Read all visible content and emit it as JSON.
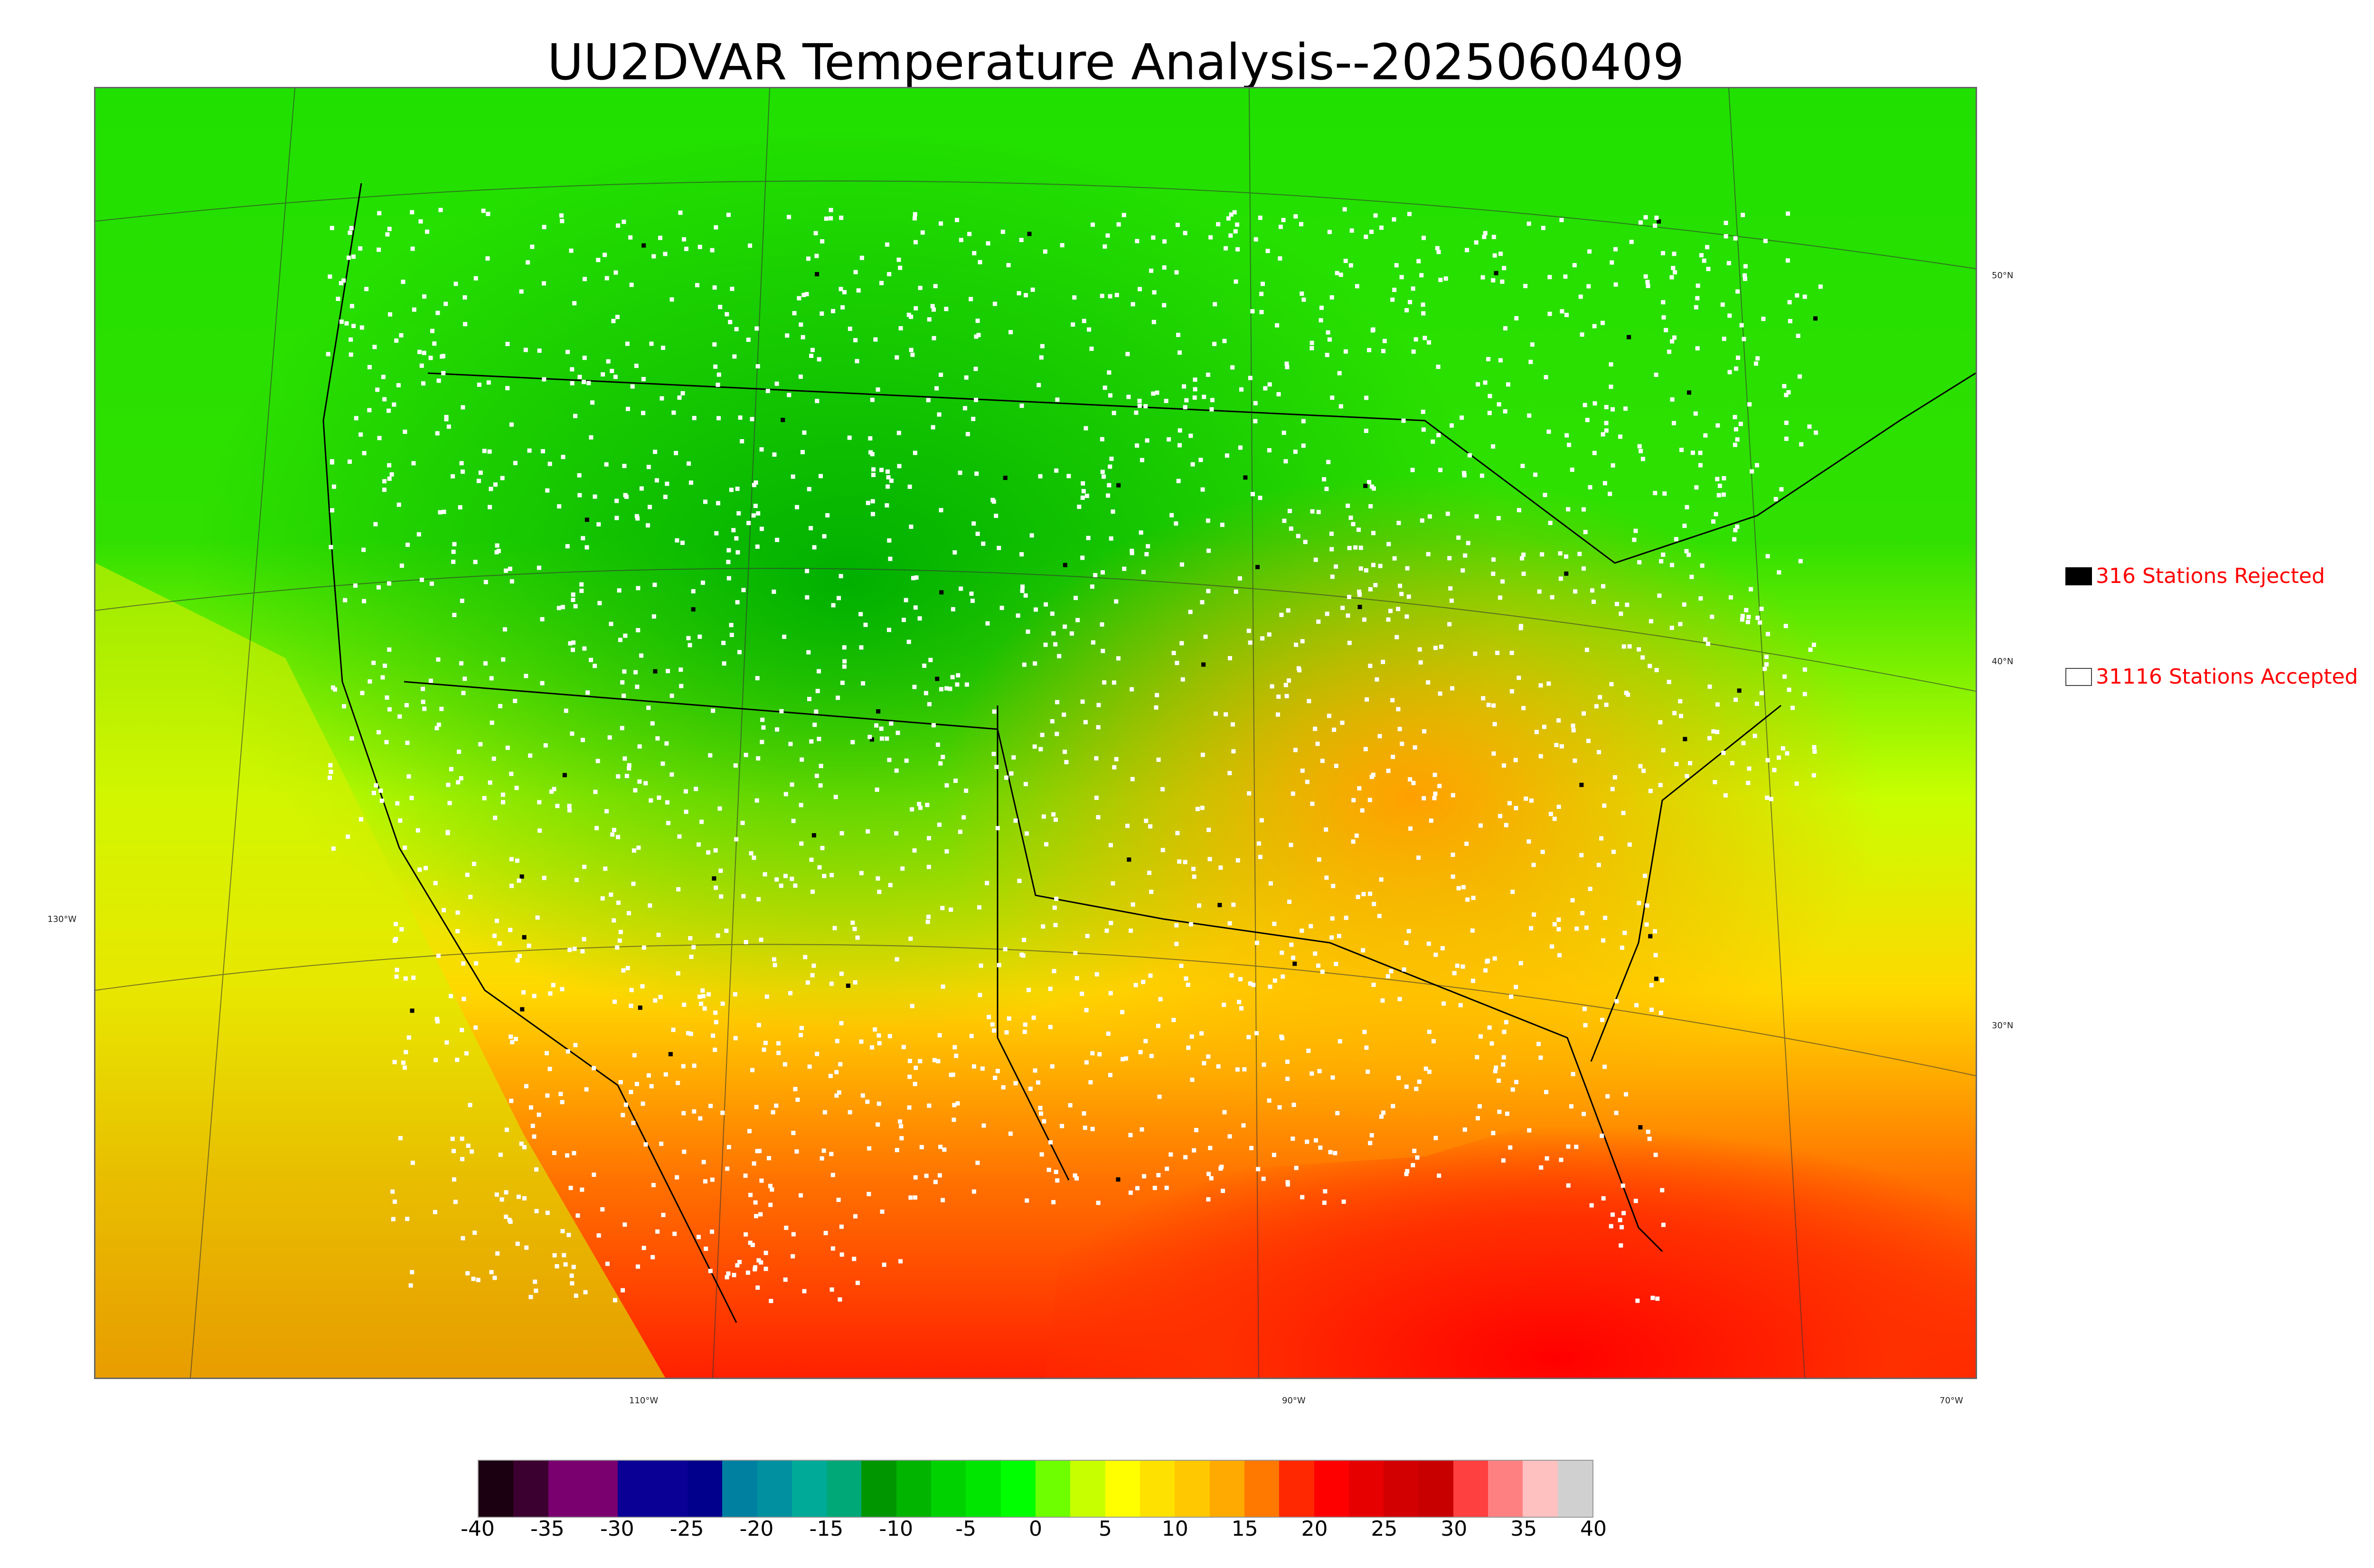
{
  "title": "UU2DVAR Temperature Analysis--2025060409",
  "map": {
    "lat_labels": [
      "50°N",
      "40°N",
      "30°N"
    ],
    "lon_labels": [
      "130°W",
      "110°W",
      "90°W",
      "70°W"
    ],
    "colors": {
      "ocean_east": "#ff2a00",
      "cold": "#00c800",
      "mild": "#b6ff00",
      "warm": "#ffb400",
      "hot": "#ff0000",
      "border": "#000000"
    }
  },
  "legend": {
    "rejected": {
      "label": "316 Stations Rejected",
      "swatch_color": "#000000"
    },
    "accepted": {
      "label": "31116 Stations Accepted",
      "swatch_color": "#ffffff"
    }
  },
  "colorbar": {
    "ticks": [
      "-40",
      "-35",
      "-30",
      "-25",
      "-20",
      "-15",
      "-10",
      "-5",
      "0",
      "5",
      "10",
      "15",
      "20",
      "25",
      "30",
      "35",
      "40"
    ],
    "colors": [
      "#1a0010",
      "#3c0030",
      "#7a0070",
      "#7a0070",
      "#0a0096",
      "#0a0096",
      "#00008c",
      "#0080a0",
      "#0090a0",
      "#00aa98",
      "#00a878",
      "#009600",
      "#00b400",
      "#00d200",
      "#00e600",
      "#00ff00",
      "#6eff00",
      "#c8ff00",
      "#ffff00",
      "#ffe100",
      "#ffc800",
      "#ffaa00",
      "#ff7800",
      "#ff2800",
      "#ff0000",
      "#e60000",
      "#d20000",
      "#c80000",
      "#ff4040",
      "#ff8080",
      "#ffc0c0",
      "#d0d0d0"
    ]
  }
}
